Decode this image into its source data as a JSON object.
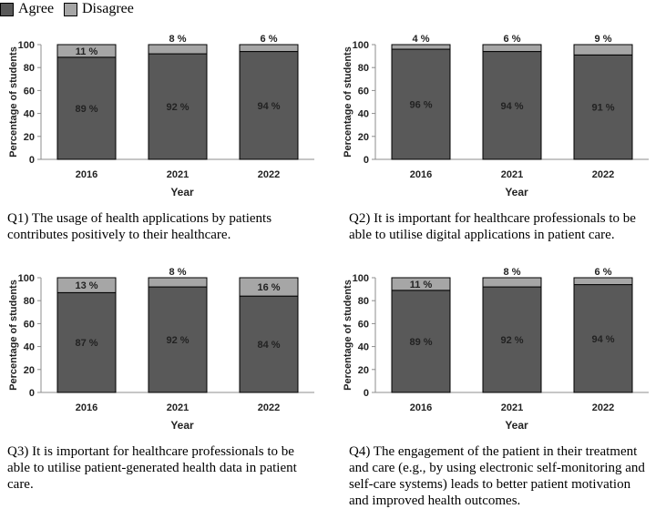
{
  "legend": [
    {
      "label": "Agree",
      "color": "#595959"
    },
    {
      "label": "Disagree",
      "color": "#a6a6a6"
    }
  ],
  "chart_data": [
    {
      "type": "bar",
      "stacked": true,
      "categories": [
        "2016",
        "2021",
        "2022"
      ],
      "series": [
        {
          "name": "Agree",
          "values": [
            89,
            92,
            94
          ],
          "labels": [
            "89 %",
            "92 %",
            "94 %"
          ]
        },
        {
          "name": "Disagree",
          "values": [
            11,
            8,
            6
          ],
          "labels": [
            "11 %",
            "8 %",
            "6 %"
          ]
        }
      ],
      "xlabel": "Year",
      "ylabel": "Percentage of students",
      "ylim": [
        0,
        100
      ],
      "yticks": [
        "0",
        "20",
        "40",
        "60",
        "80",
        "100"
      ],
      "caption": [
        "Q1) The usage of health applications by patients",
        "contributes positively to their healthcare."
      ]
    },
    {
      "type": "bar",
      "stacked": true,
      "categories": [
        "2016",
        "2021",
        "2022"
      ],
      "series": [
        {
          "name": "Agree",
          "values": [
            96,
            94,
            91
          ],
          "labels": [
            "96 %",
            "94 %",
            "91 %"
          ]
        },
        {
          "name": "Disagree",
          "values": [
            4,
            6,
            9
          ],
          "labels": [
            "4 %",
            "6 %",
            "9 %"
          ]
        }
      ],
      "xlabel": "Year",
      "ylabel": "Percentage of students",
      "ylim": [
        0,
        100
      ],
      "yticks": [
        "0",
        "20",
        "40",
        "60",
        "80",
        "100"
      ],
      "caption": [
        "Q2) It is important for healthcare professionals to be",
        "able to utilise digital applications in patient care."
      ]
    },
    {
      "type": "bar",
      "stacked": true,
      "categories": [
        "2016",
        "2021",
        "2022"
      ],
      "series": [
        {
          "name": "Agree",
          "values": [
            87,
            92,
            84
          ],
          "labels": [
            "87 %",
            "92 %",
            "84 %"
          ]
        },
        {
          "name": "Disagree",
          "values": [
            13,
            8,
            16
          ],
          "labels": [
            "13 %",
            "8 %",
            "16 %"
          ]
        }
      ],
      "xlabel": "Year",
      "ylabel": "Percentage of students",
      "ylim": [
        0,
        100
      ],
      "yticks": [
        "0",
        "20",
        "40",
        "60",
        "80",
        "100"
      ],
      "caption": [
        "Q3) It is important for healthcare professionals to be",
        "able to utilise patient-generated health data in patient",
        "care."
      ]
    },
    {
      "type": "bar",
      "stacked": true,
      "categories": [
        "2016",
        "2021",
        "2022"
      ],
      "series": [
        {
          "name": "Agree",
          "values": [
            89,
            92,
            94
          ],
          "labels": [
            "89 %",
            "92 %",
            "94 %"
          ]
        },
        {
          "name": "Disagree",
          "values": [
            11,
            8,
            6
          ],
          "labels": [
            "11 %",
            "8 %",
            "6 %"
          ]
        }
      ],
      "xlabel": "Year",
      "ylabel": "Percentage of students",
      "ylim": [
        0,
        100
      ],
      "yticks": [
        "0",
        "20",
        "40",
        "60",
        "80",
        "100"
      ],
      "caption": [
        "Q4) The engagement of the patient in their treatment",
        "and care (e.g., by using electronic self-monitoring and",
        "self-care systems) leads to better patient motivation",
        "and improved health outcomes."
      ]
    }
  ]
}
